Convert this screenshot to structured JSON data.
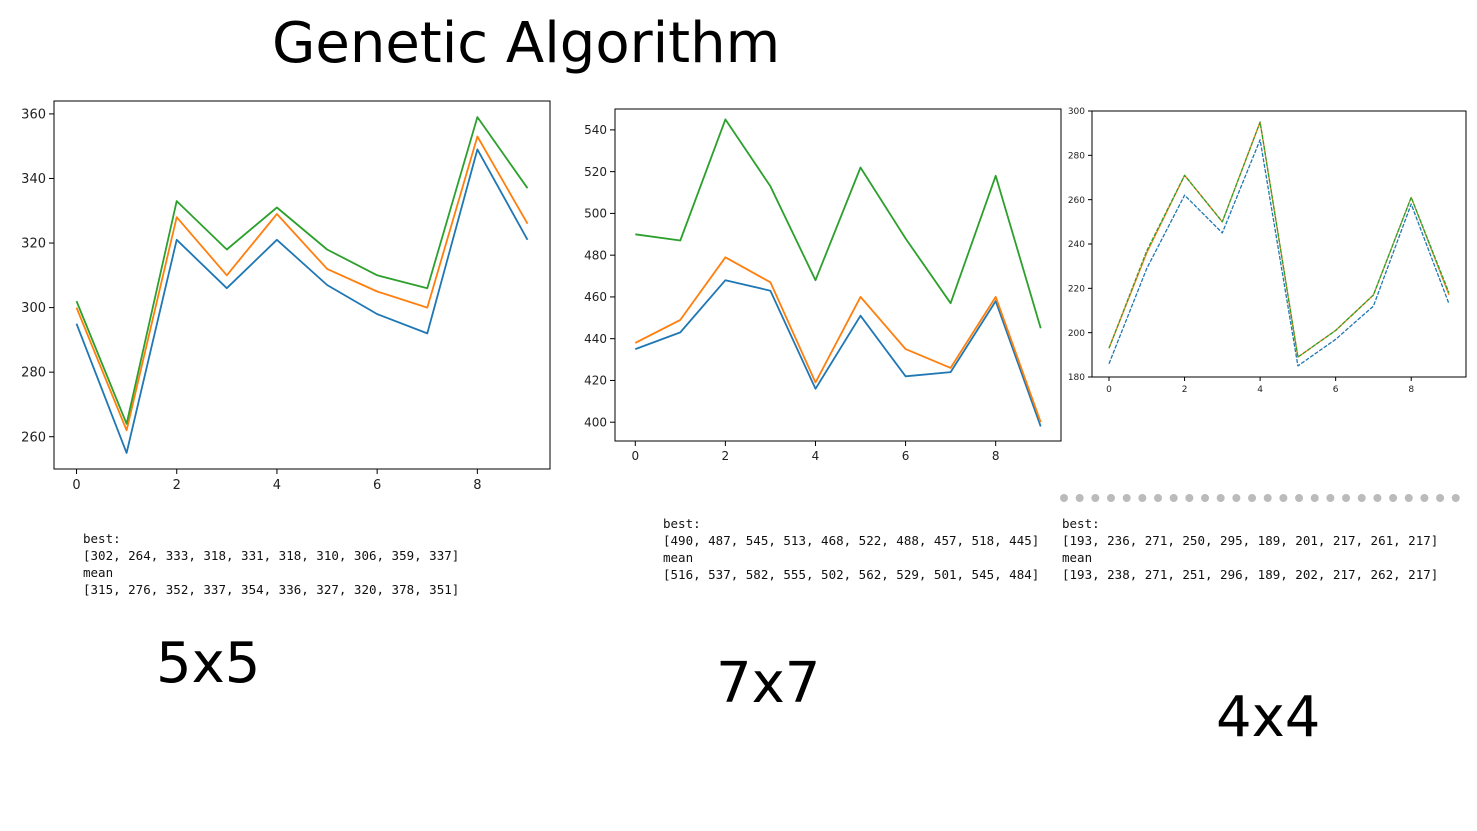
{
  "title": "Genetic Algorithm",
  "colors": {
    "series1": "#1f77b4",
    "series2": "#ff7f0e",
    "series3": "#2ca02c"
  },
  "panels": [
    {
      "size_label": "5x5",
      "stats": {
        "best_label": "best:",
        "best_values": "[302, 264, 333, 318, 331, 318, 310, 306, 359, 337]",
        "mean_label": "mean",
        "mean_values": "[315, 276, 352, 337, 354, 336, 327, 320, 378, 351]"
      }
    },
    {
      "size_label": "7x7",
      "stats": {
        "best_label": "best:",
        "best_values": "[490, 487, 545, 513, 468, 522, 488, 457, 518, 445]",
        "mean_label": "mean",
        "mean_values": "[516, 537, 582, 555, 502, 562, 529, 501, 545, 484]"
      }
    },
    {
      "size_label": "4x4",
      "stats": {
        "best_label": "best:",
        "best_values": "[193, 236, 271, 250, 295, 189, 201, 217, 261, 217]",
        "mean_label": "mean",
        "mean_values": "[193, 238, 271, 251, 296, 189, 202, 217, 262, 217]"
      }
    }
  ],
  "chart_data": [
    {
      "type": "line",
      "x": [
        0,
        1,
        2,
        3,
        4,
        5,
        6,
        7,
        8,
        9
      ],
      "xlim": [
        -0.45,
        9.45
      ],
      "ylim": [
        250,
        364
      ],
      "xticks": [
        0,
        2,
        4,
        6,
        8
      ],
      "yticks": [
        260,
        280,
        300,
        320,
        340,
        360
      ],
      "grid": false,
      "series": [
        {
          "values": [
            295,
            255,
            321,
            306,
            321,
            307,
            298,
            292,
            349,
            321
          ],
          "dashed": false
        },
        {
          "values": [
            300,
            262,
            328,
            310,
            329,
            312,
            305,
            300,
            353,
            326
          ],
          "dashed": false
        },
        {
          "values": [
            302,
            264,
            333,
            318,
            331,
            318,
            310,
            306,
            359,
            337
          ],
          "dashed": false
        }
      ]
    },
    {
      "type": "line",
      "x": [
        0,
        1,
        2,
        3,
        4,
        5,
        6,
        7,
        8,
        9
      ],
      "xlim": [
        -0.45,
        9.45
      ],
      "ylim": [
        391,
        550
      ],
      "xticks": [
        0,
        2,
        4,
        6,
        8
      ],
      "yticks": [
        400,
        420,
        440,
        460,
        480,
        500,
        520,
        540
      ],
      "grid": false,
      "series": [
        {
          "values": [
            435,
            443,
            468,
            463,
            416,
            451,
            422,
            424,
            458,
            398
          ],
          "dashed": false
        },
        {
          "values": [
            438,
            449,
            479,
            467,
            419,
            460,
            435,
            426,
            460,
            400
          ],
          "dashed": false
        },
        {
          "values": [
            490,
            487,
            545,
            513,
            468,
            522,
            488,
            457,
            518,
            445
          ],
          "dashed": false
        }
      ]
    },
    {
      "type": "line",
      "x": [
        0,
        1,
        2,
        3,
        4,
        5,
        6,
        7,
        8,
        9
      ],
      "xlim": [
        -0.45,
        9.45
      ],
      "ylim": [
        180,
        300
      ],
      "xticks": [
        0,
        2,
        4,
        6,
        8
      ],
      "yticks": [
        180,
        200,
        220,
        240,
        260,
        280,
        300
      ],
      "grid": false,
      "series": [
        {
          "values": [
            186,
            229,
            262,
            245,
            287,
            185,
            197,
            212,
            258,
            213
          ],
          "dashed": true
        },
        {
          "values": [
            193,
            236,
            271,
            250,
            295,
            189,
            201,
            217,
            261,
            217
          ],
          "dashed": false
        },
        {
          "values": [
            193,
            237,
            271,
            250,
            295,
            189,
            201,
            217,
            261,
            218
          ],
          "dashed": true
        }
      ]
    }
  ]
}
